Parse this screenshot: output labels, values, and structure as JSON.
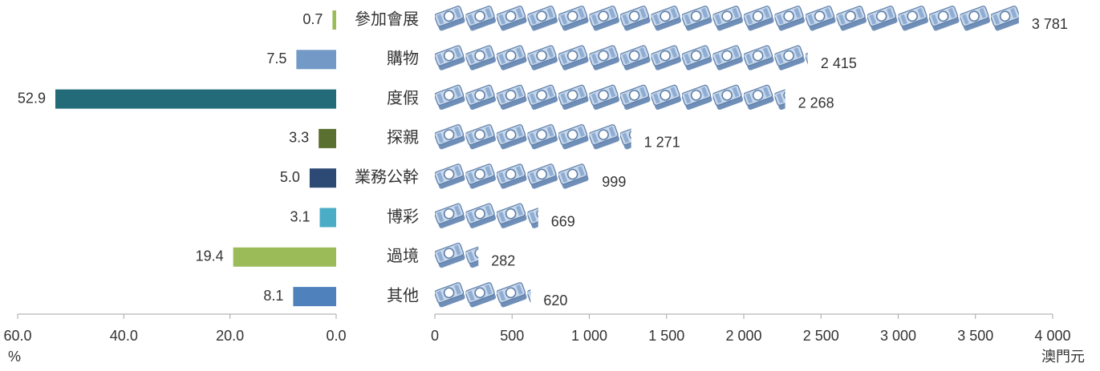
{
  "chart_data": [
    {
      "type": "bar",
      "values": [
        0.7,
        7.5,
        52.9,
        3.3,
        5.0,
        3.1,
        19.4,
        8.1
      ],
      "value_labels": [
        "0.7",
        "7.5",
        "52.9",
        "3.3",
        "5.0",
        "3.1",
        "19.4",
        "8.1"
      ],
      "colors": [
        "#9bbb59",
        "#7399c6",
        "#236b78",
        "#5a7030",
        "#2c4a74",
        "#4bacc6",
        "#9bbb59",
        "#4f81bd"
      ],
      "xlim": [
        60,
        0
      ],
      "xticks": [
        {
          "value": 60,
          "label": "60.0"
        },
        {
          "value": 40,
          "label": "40.0"
        },
        {
          "value": 20,
          "label": "20.0"
        },
        {
          "value": 0,
          "label": "0.0"
        }
      ],
      "xlabel": "%"
    },
    {
      "type": "pictogram",
      "categories": [
        "參加會展",
        "購物",
        "度假",
        "探親",
        "業務公幹",
        "博彩",
        "過境",
        "其他"
      ],
      "values": [
        3781,
        2415,
        2268,
        1271,
        999,
        669,
        282,
        620
      ],
      "value_labels": [
        "3 781",
        "2 415",
        "2 268",
        "1 271",
        "999",
        "669",
        "282",
        "620"
      ],
      "color": "#9db8d9",
      "xlim": [
        0,
        4000
      ],
      "xticks": [
        0,
        500,
        {
          "value": 1000,
          "label": "1 000"
        },
        {
          "value": 1500,
          "label": "1 500"
        },
        {
          "value": 2000,
          "label": "2 000"
        },
        {
          "value": 2500,
          "label": "2 500"
        },
        {
          "value": 3000,
          "label": "3 000"
        },
        {
          "value": 3500,
          "label": "3 500"
        },
        {
          "value": 4000,
          "label": "4 000"
        }
      ],
      "xlabel": "澳門元"
    }
  ]
}
